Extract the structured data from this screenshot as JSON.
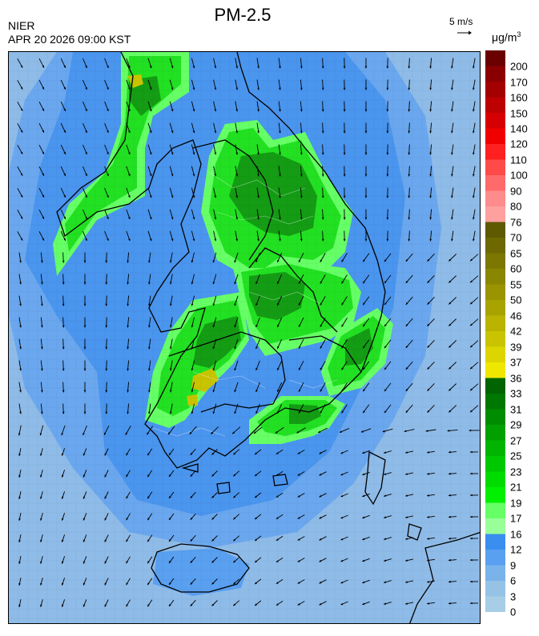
{
  "header": {
    "title": "PM-2.5",
    "agency": "NIER",
    "timestamp": "APR 20 2026 09:00 KST",
    "vector_scale_label": "5 m/s",
    "unit_main": "μg/m",
    "unit_sup": "3"
  },
  "colorbar": {
    "ticks": [
      "200",
      "170",
      "160",
      "150",
      "140",
      "120",
      "110",
      "100",
      "90",
      "80",
      "76",
      "70",
      "65",
      "60",
      "55",
      "50",
      "46",
      "42",
      "39",
      "37",
      "36",
      "33",
      "31",
      "29",
      "27",
      "25",
      "23",
      "21",
      "19",
      "17",
      "16",
      "12",
      "9",
      "6",
      "3",
      "0"
    ],
    "bins": [
      {
        "color": "#6b0000"
      },
      {
        "color": "#8a0000"
      },
      {
        "color": "#a30000"
      },
      {
        "color": "#bd0000"
      },
      {
        "color": "#d60000"
      },
      {
        "color": "#f00000"
      },
      {
        "color": "#ff2020"
      },
      {
        "color": "#ff4a4a"
      },
      {
        "color": "#ff6b6b"
      },
      {
        "color": "#ff8c8c"
      },
      {
        "color": "#ffa0a0"
      },
      {
        "color": "#5e5a00"
      },
      {
        "color": "#6d6800"
      },
      {
        "color": "#7c7700"
      },
      {
        "color": "#8b8600"
      },
      {
        "color": "#9a9400"
      },
      {
        "color": "#a9a300"
      },
      {
        "color": "#bab300"
      },
      {
        "color": "#cac400"
      },
      {
        "color": "#dcd500"
      },
      {
        "color": "#efe700"
      },
      {
        "color": "#006400"
      },
      {
        "color": "#007800"
      },
      {
        "color": "#008c00"
      },
      {
        "color": "#00a000"
      },
      {
        "color": "#00b400"
      },
      {
        "color": "#00c800"
      },
      {
        "color": "#00dc00"
      },
      {
        "color": "#00f000"
      },
      {
        "color": "#66ff66"
      },
      {
        "color": "#99ff99"
      },
      {
        "color": "#3a8ef0"
      },
      {
        "color": "#5aa0f0"
      },
      {
        "color": "#7ab2ea"
      },
      {
        "color": "#96c2e6"
      },
      {
        "color": "#a8cde6"
      }
    ]
  },
  "map": {
    "colors": {
      "ocean_base": "#8fbbe8",
      "coastal_blue": "#4a95ee",
      "mid_blue": "#6aa7ee",
      "green_low": "#22e022",
      "green_high": "#149c14",
      "light_green": "#66ff66",
      "yellow": "#c8c400",
      "outline": "#000000",
      "vector": "#000000"
    }
  }
}
